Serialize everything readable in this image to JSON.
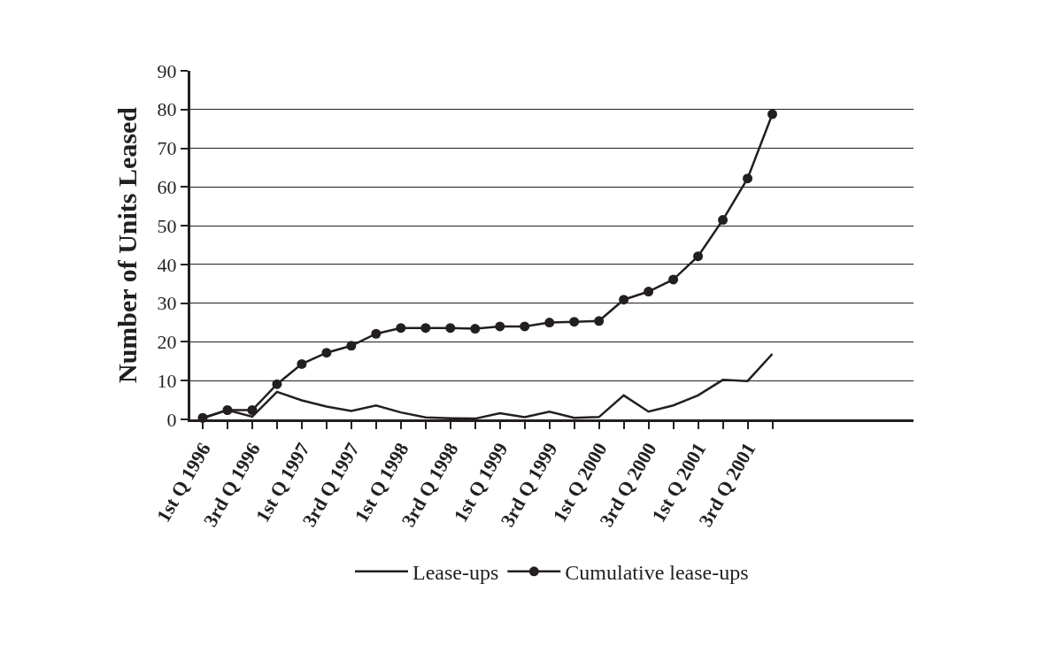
{
  "chart_data": {
    "type": "line",
    "ylabel": "Number of Units Leased",
    "categories": [
      "1st Q 1996",
      null,
      "3rd Q 1996",
      null,
      "1st Q 1997",
      null,
      "3rd Q 1997",
      null,
      "1st Q 1998",
      null,
      "3rd Q 1998",
      null,
      "1st Q 1999",
      null,
      "3rd Q 1999",
      null,
      "1st Q 2000",
      null,
      "3rd Q 2000",
      null,
      "1st Q 2001",
      null,
      "3rd Q 2001",
      null
    ],
    "series": [
      {
        "name": "Lease-ups",
        "color": "#231f20",
        "marker": "none",
        "values": [
          0.3,
          2.4,
          0.7,
          7.1,
          4.9,
          3.3,
          2.2,
          3.6,
          1.8,
          0.5,
          0.3,
          0.2,
          1.6,
          0.6,
          2.0,
          0.4,
          0.6,
          6.2,
          2.0,
          3.6,
          6.2,
          10.2,
          9.9,
          16.9
        ]
      },
      {
        "name": "Cumulative lease-ups",
        "color": "#231f20",
        "marker": "circle",
        "values": [
          0.4,
          2.4,
          2.4,
          9.1,
          14.3,
          17.2,
          19.0,
          22.1,
          23.6,
          23.6,
          23.6,
          23.4,
          24.0,
          24.0,
          25.0,
          25.2,
          25.4,
          30.9,
          33.0,
          36.1,
          42.1,
          51.5,
          62.2,
          78.8
        ]
      }
    ],
    "ylim": [
      0,
      90
    ],
    "yticks": [
      0,
      10,
      20,
      30,
      40,
      50,
      60,
      70,
      80,
      90
    ],
    "grid": "y",
    "legend": "bottom",
    "line_style": "solid"
  }
}
